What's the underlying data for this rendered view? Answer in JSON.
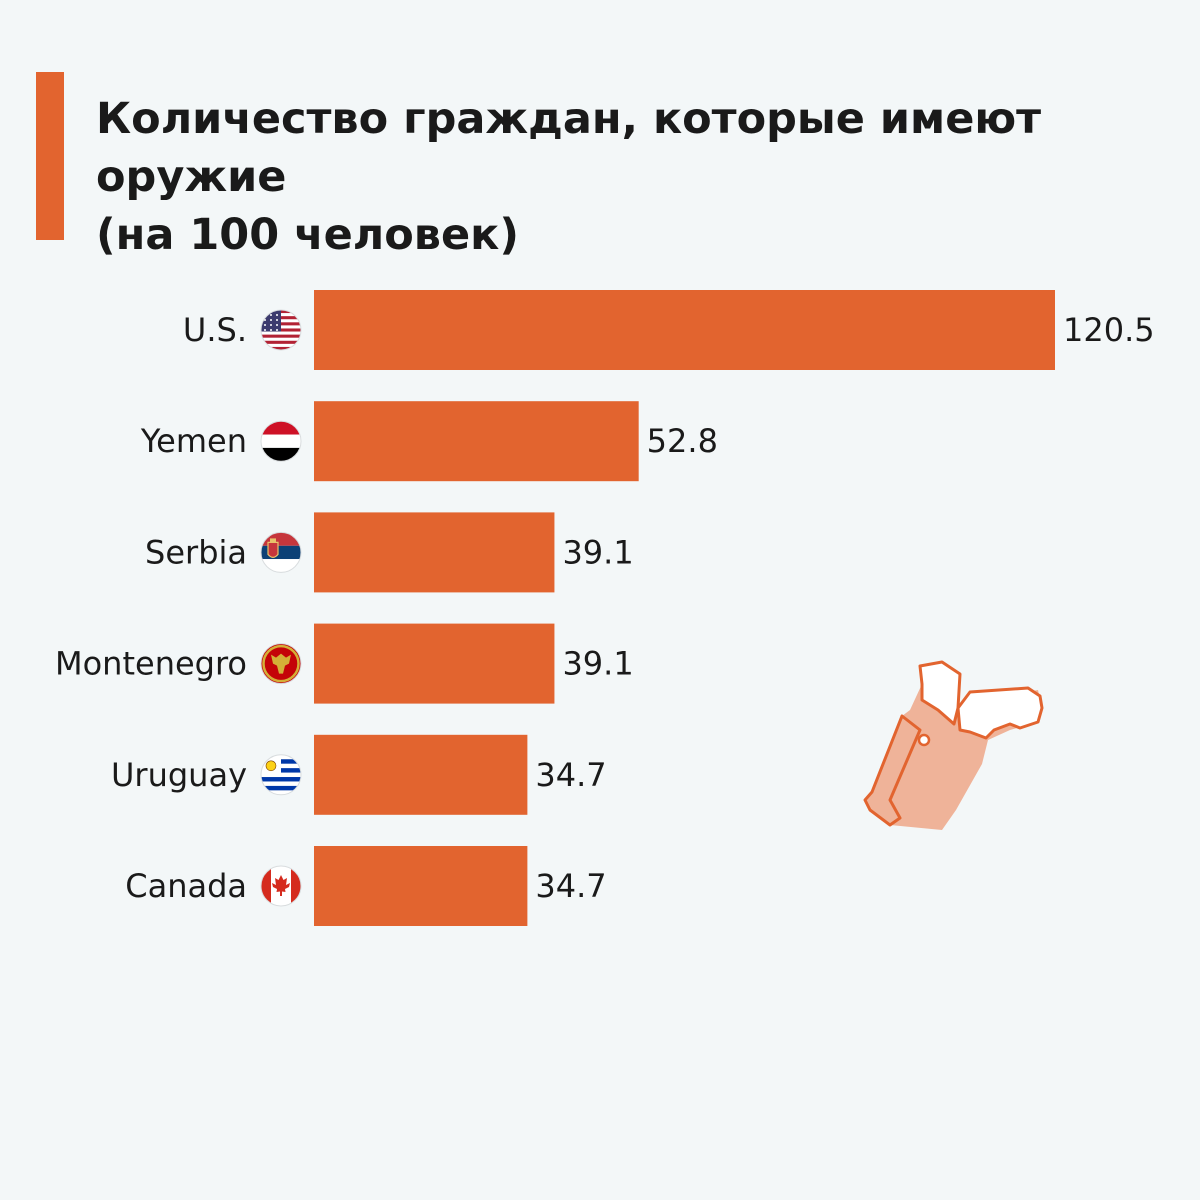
{
  "colors": {
    "accent": "#e2642f",
    "bar": "#e2642f",
    "illustration_fill": "#efb399",
    "illustration_stroke": "#e2642f"
  },
  "title": {
    "line1": "Количество граждан, которые имеют оружие",
    "line2": "(на 100 человек)"
  },
  "decoration": {
    "icon": "pistol-holster-icon"
  },
  "chart_data": {
    "type": "bar",
    "orientation": "horizontal",
    "categories": [
      "U.S.",
      "Yemen",
      "Serbia",
      "Montenegro",
      "Uruguay",
      "Canada"
    ],
    "flags": [
      "us-flag-icon",
      "yemen-flag-icon",
      "serbia-flag-icon",
      "montenegro-flag-icon",
      "uruguay-flag-icon",
      "canada-flag-icon"
    ],
    "values": [
      120.5,
      52.8,
      39.1,
      39.1,
      34.7,
      34.7
    ],
    "value_labels": [
      "120.5",
      "52.8",
      "39.1",
      "39.1",
      "34.7",
      "34.7"
    ],
    "xlim": [
      0,
      120.5
    ],
    "grid": false,
    "legend": "none"
  }
}
